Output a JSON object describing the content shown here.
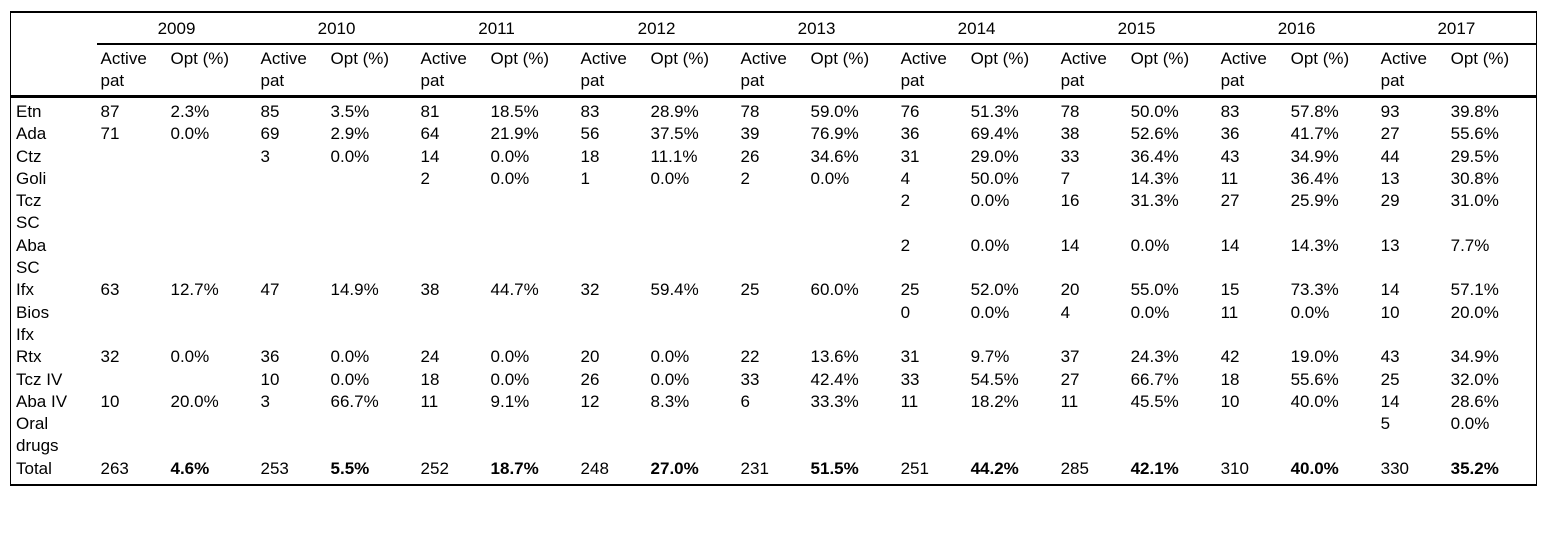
{
  "table": {
    "col_active": "Active pat",
    "col_opt": "Opt (%)",
    "years": [
      "2009",
      "2010",
      "2011",
      "2012",
      "2013",
      "2014",
      "2015",
      "2016",
      "2017"
    ],
    "rows": [
      {
        "label": "Etn",
        "total": false,
        "values": [
          "87",
          "2.3%",
          "85",
          "3.5%",
          "81",
          "18.5%",
          "83",
          "28.9%",
          "78",
          "59.0%",
          "76",
          "51.3%",
          "78",
          "50.0%",
          "83",
          "57.8%",
          "93",
          "39.8%"
        ]
      },
      {
        "label": "Ada",
        "total": false,
        "values": [
          "71",
          "0.0%",
          "69",
          "2.9%",
          "64",
          "21.9%",
          "56",
          "37.5%",
          "39",
          "76.9%",
          "36",
          "69.4%",
          "38",
          "52.6%",
          "36",
          "41.7%",
          "27",
          "55.6%"
        ]
      },
      {
        "label": "Ctz",
        "total": false,
        "values": [
          "",
          "",
          "3",
          "0.0%",
          "14",
          "0.0%",
          "18",
          "11.1%",
          "26",
          "34.6%",
          "31",
          "29.0%",
          "33",
          "36.4%",
          "43",
          "34.9%",
          "44",
          "29.5%"
        ]
      },
      {
        "label": "Goli",
        "total": false,
        "values": [
          "",
          "",
          "",
          "",
          "2",
          "0.0%",
          "1",
          "0.0%",
          "2",
          "0.0%",
          "4",
          "50.0%",
          "7",
          "14.3%",
          "11",
          "36.4%",
          "13",
          "30.8%"
        ]
      },
      {
        "label": "Tcz SC",
        "total": false,
        "values": [
          "",
          "",
          "",
          "",
          "",
          "",
          "",
          "",
          "",
          "",
          "2",
          "0.0%",
          "16",
          "31.3%",
          "27",
          "25.9%",
          "29",
          "31.0%"
        ]
      },
      {
        "label": "Aba SC",
        "total": false,
        "values": [
          "",
          "",
          "",
          "",
          "",
          "",
          "",
          "",
          "",
          "",
          "2",
          "0.0%",
          "14",
          "0.0%",
          "14",
          "14.3%",
          "13",
          "7.7%"
        ]
      },
      {
        "label": "Ifx",
        "total": false,
        "values": [
          "63",
          "12.7%",
          "47",
          "14.9%",
          "38",
          "44.7%",
          "32",
          "59.4%",
          "25",
          "60.0%",
          "25",
          "52.0%",
          "20",
          "55.0%",
          "15",
          "73.3%",
          "14",
          "57.1%"
        ]
      },
      {
        "label": "Bios Ifx",
        "total": false,
        "values": [
          "",
          "",
          "",
          "",
          "",
          "",
          "",
          "",
          "",
          "",
          "0",
          "0.0%",
          "4",
          "0.0%",
          "11",
          "0.0%",
          "10",
          "20.0%"
        ]
      },
      {
        "label": "Rtx",
        "total": false,
        "values": [
          "32",
          "0.0%",
          "36",
          "0.0%",
          "24",
          "0.0%",
          "20",
          "0.0%",
          "22",
          "13.6%",
          "31",
          "9.7%",
          "37",
          "24.3%",
          "42",
          "19.0%",
          "43",
          "34.9%"
        ]
      },
      {
        "label": "Tcz IV",
        "total": false,
        "values": [
          "",
          "",
          "10",
          "0.0%",
          "18",
          "0.0%",
          "26",
          "0.0%",
          "33",
          "42.4%",
          "33",
          "54.5%",
          "27",
          "66.7%",
          "18",
          "55.6%",
          "25",
          "32.0%"
        ]
      },
      {
        "label": "Aba IV",
        "total": false,
        "values": [
          "10",
          "20.0%",
          "3",
          "66.7%",
          "11",
          "9.1%",
          "12",
          "8.3%",
          "6",
          "33.3%",
          "11",
          "18.2%",
          "11",
          "45.5%",
          "10",
          "40.0%",
          "14",
          "28.6%"
        ]
      },
      {
        "label": "Oral drugs",
        "total": false,
        "values": [
          "",
          "",
          "",
          "",
          "",
          "",
          "",
          "",
          "",
          "",
          "",
          "",
          "",
          "",
          "",
          "",
          "5",
          "0.0%"
        ]
      },
      {
        "label": "Total",
        "total": true,
        "values": [
          "263",
          "4.6%",
          "253",
          "5.5%",
          "252",
          "18.7%",
          "248",
          "27.0%",
          "231",
          "51.5%",
          "251",
          "44.2%",
          "285",
          "42.1%",
          "310",
          "40.0%",
          "330",
          "35.2%"
        ]
      }
    ]
  }
}
